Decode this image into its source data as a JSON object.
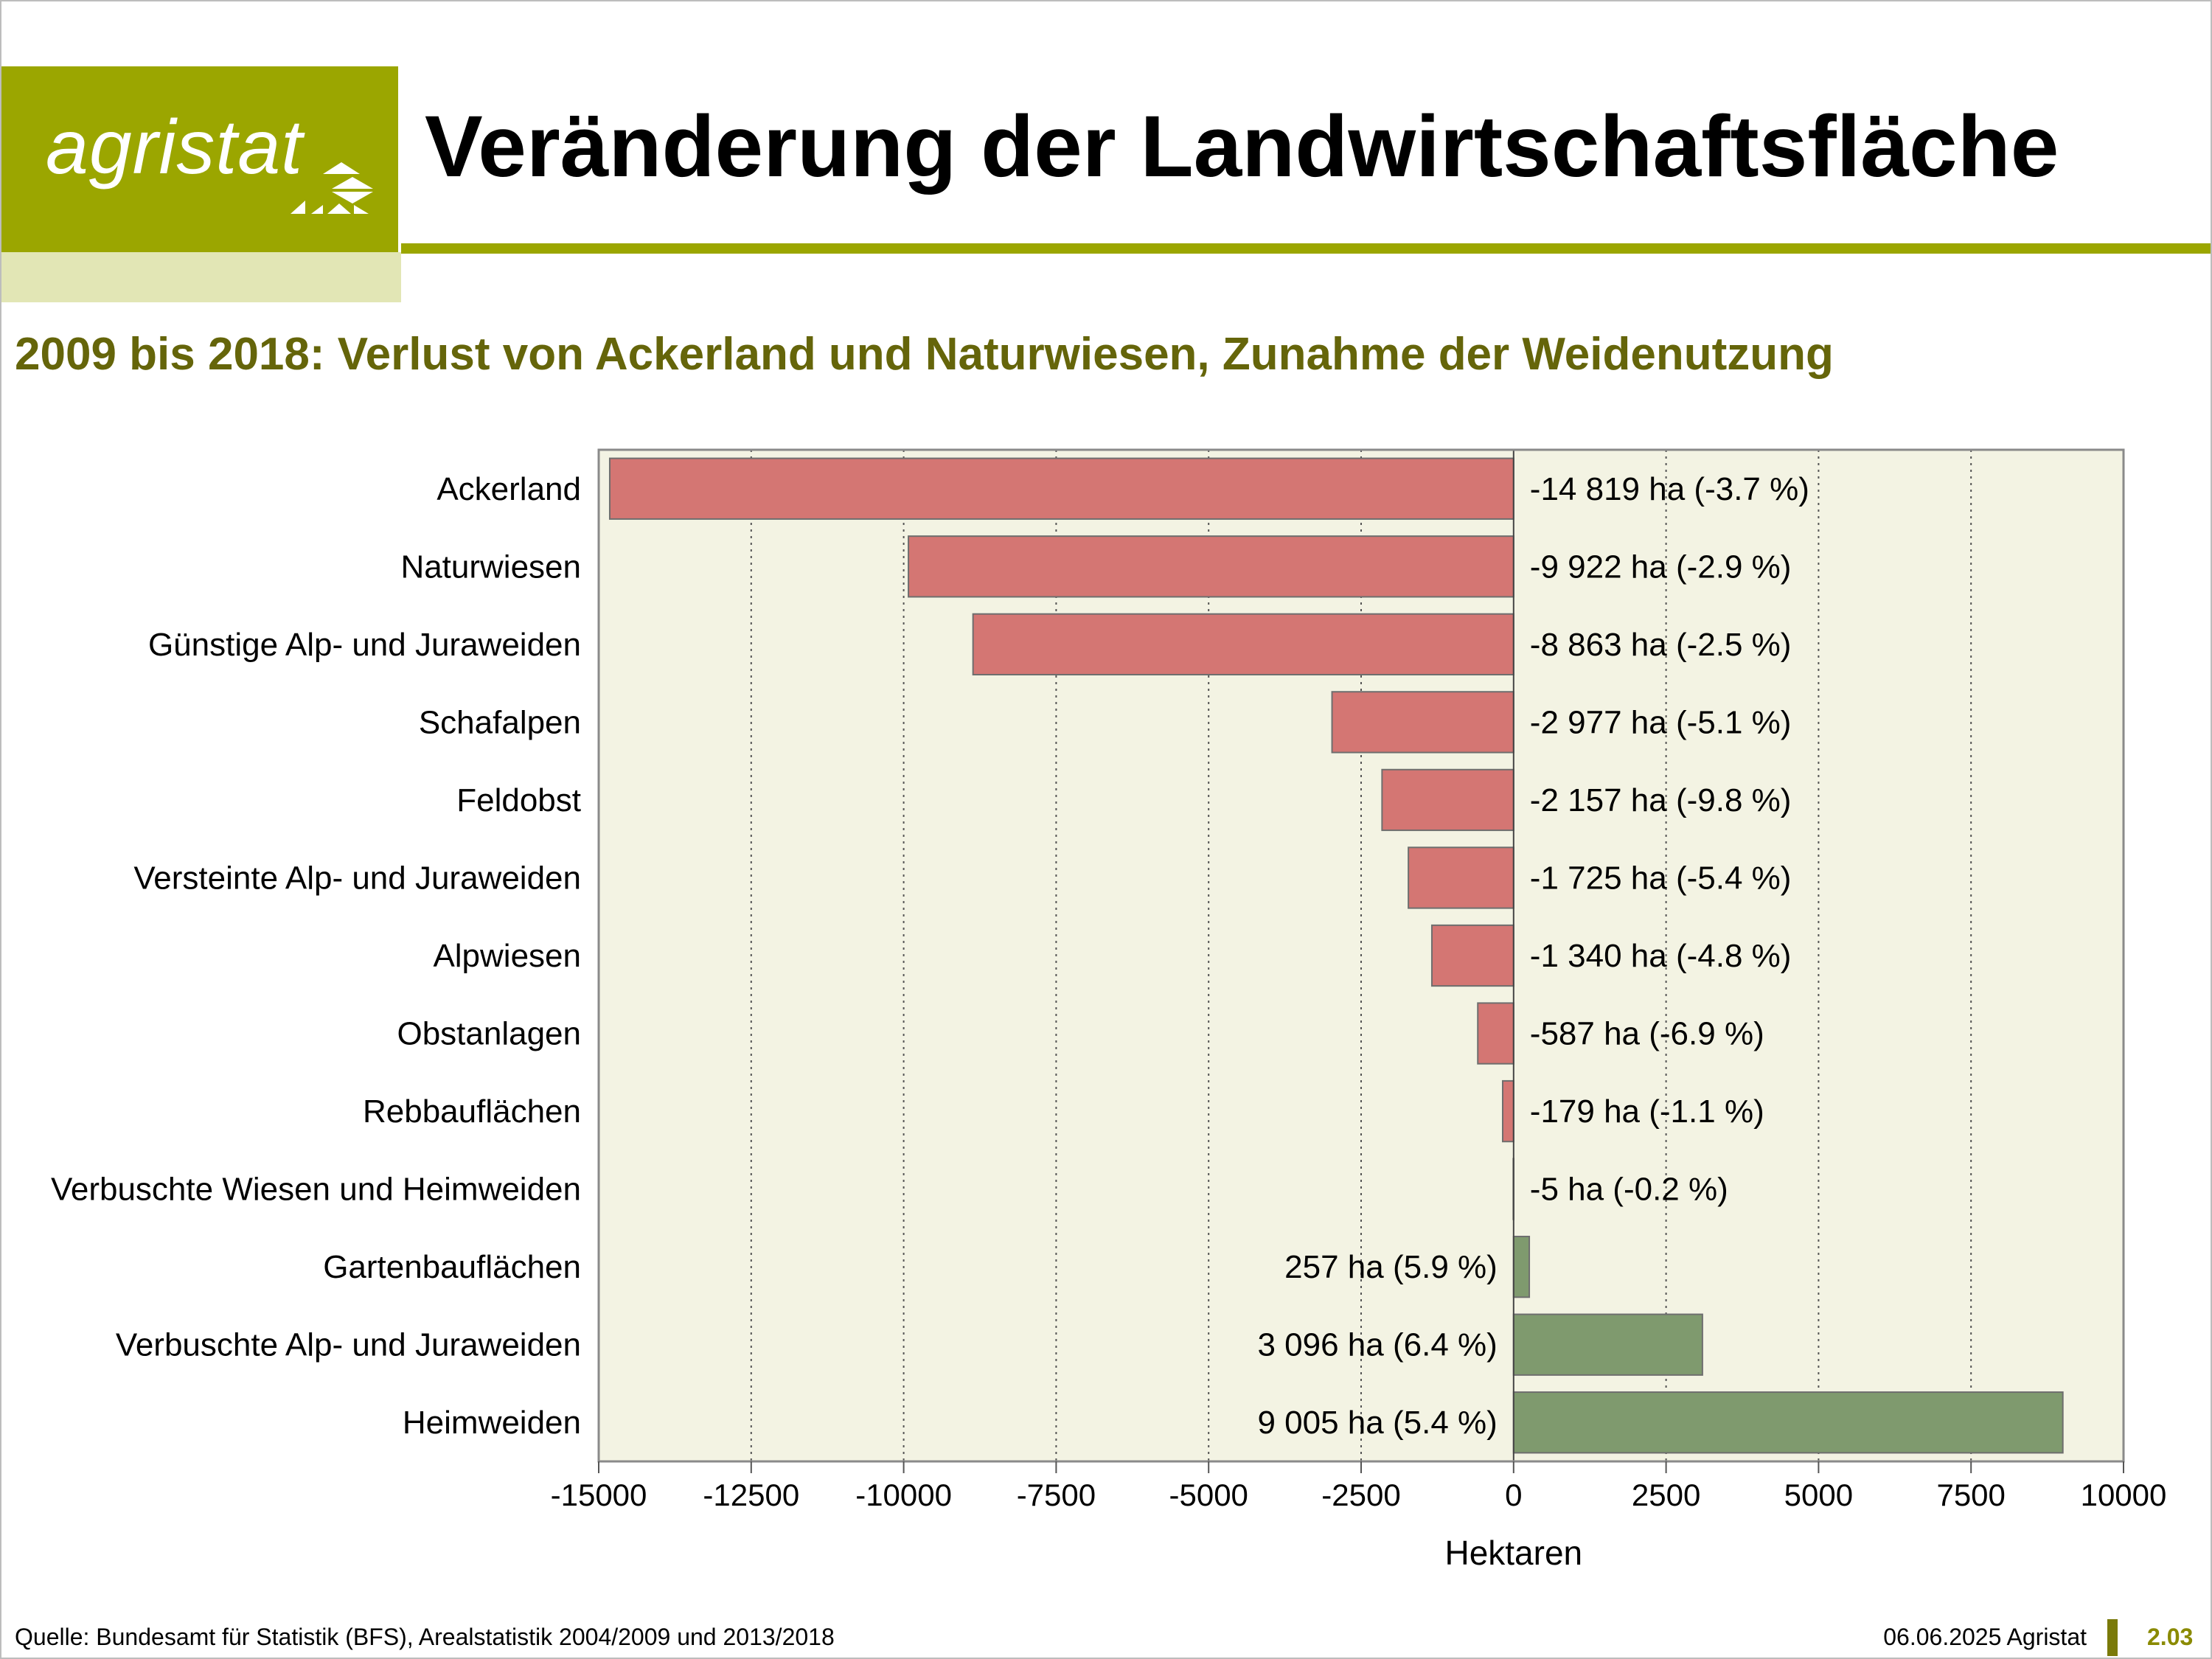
{
  "header": {
    "logo_text": "agristat",
    "title": "Veränderung der Landwirtschaftsfläche"
  },
  "subtitle": "2009 bis 2018: Verlust von Ackerland und Naturwiesen, Zunahme der Weidenutzung",
  "footer": {
    "source": "Quelle: Bundesamt für Statistik (BFS), Arealstatistik 2004/2009 und 2013/2018",
    "date_org": "06.06.2025 Agristat",
    "page": "2.03"
  },
  "colors": {
    "brand_olive": "#9ba600",
    "brand_light": "#e2e6b5",
    "subtitle_text": "#65650a",
    "plot_background": "#f3f3e3",
    "negative_bar": "#d47673",
    "positive_bar": "#7f9a6e"
  },
  "chart_data": {
    "type": "bar",
    "orientation": "horizontal",
    "xlabel": "Hektaren",
    "xlim": [
      -15000,
      10000
    ],
    "x_ticks": [
      -15000,
      -12500,
      -10000,
      -7500,
      -5000,
      -2500,
      0,
      2500,
      5000,
      7500,
      10000
    ],
    "x_tick_labels": [
      "-15000",
      "-12500",
      "-10000",
      "-7500",
      "-5000",
      "-2500",
      "0",
      "2500",
      "5000",
      "7500",
      "10000"
    ],
    "grid": "vertical dotted",
    "categories": [
      "Ackerland",
      "Naturwiesen",
      "Günstige Alp- und Juraweiden",
      "Schafalpen",
      "Feldobst",
      "Versteinte Alp- und Juraweiden",
      "Alpwiesen",
      "Obstanlagen",
      "Rebbauflächen",
      "Verbuschte Wiesen und Heimweiden",
      "Gartenbauflächen",
      "Verbuschte Alp- und Juraweiden",
      "Heimweiden"
    ],
    "values": [
      -14819,
      -9922,
      -8863,
      -2977,
      -2157,
      -1725,
      -1340,
      -587,
      -179,
      -5,
      257,
      3096,
      9005
    ],
    "data_labels": [
      "-14 819 ha (-3.7 %)",
      "-9 922 ha (-2.9 %)",
      "-8 863 ha (-2.5 %)",
      "-2 977 ha (-5.1 %)",
      "-2 157 ha (-9.8 %)",
      "-1 725 ha (-5.4 %)",
      "-1 340 ha (-4.8 %)",
      "-587 ha (-6.9 %)",
      "-179 ha (-1.1 %)",
      "-5 ha (-0.2 %)",
      "257 ha (5.9 %)",
      "3 096 ha (6.4 %)",
      "9 005 ha (5.4 %)"
    ]
  }
}
